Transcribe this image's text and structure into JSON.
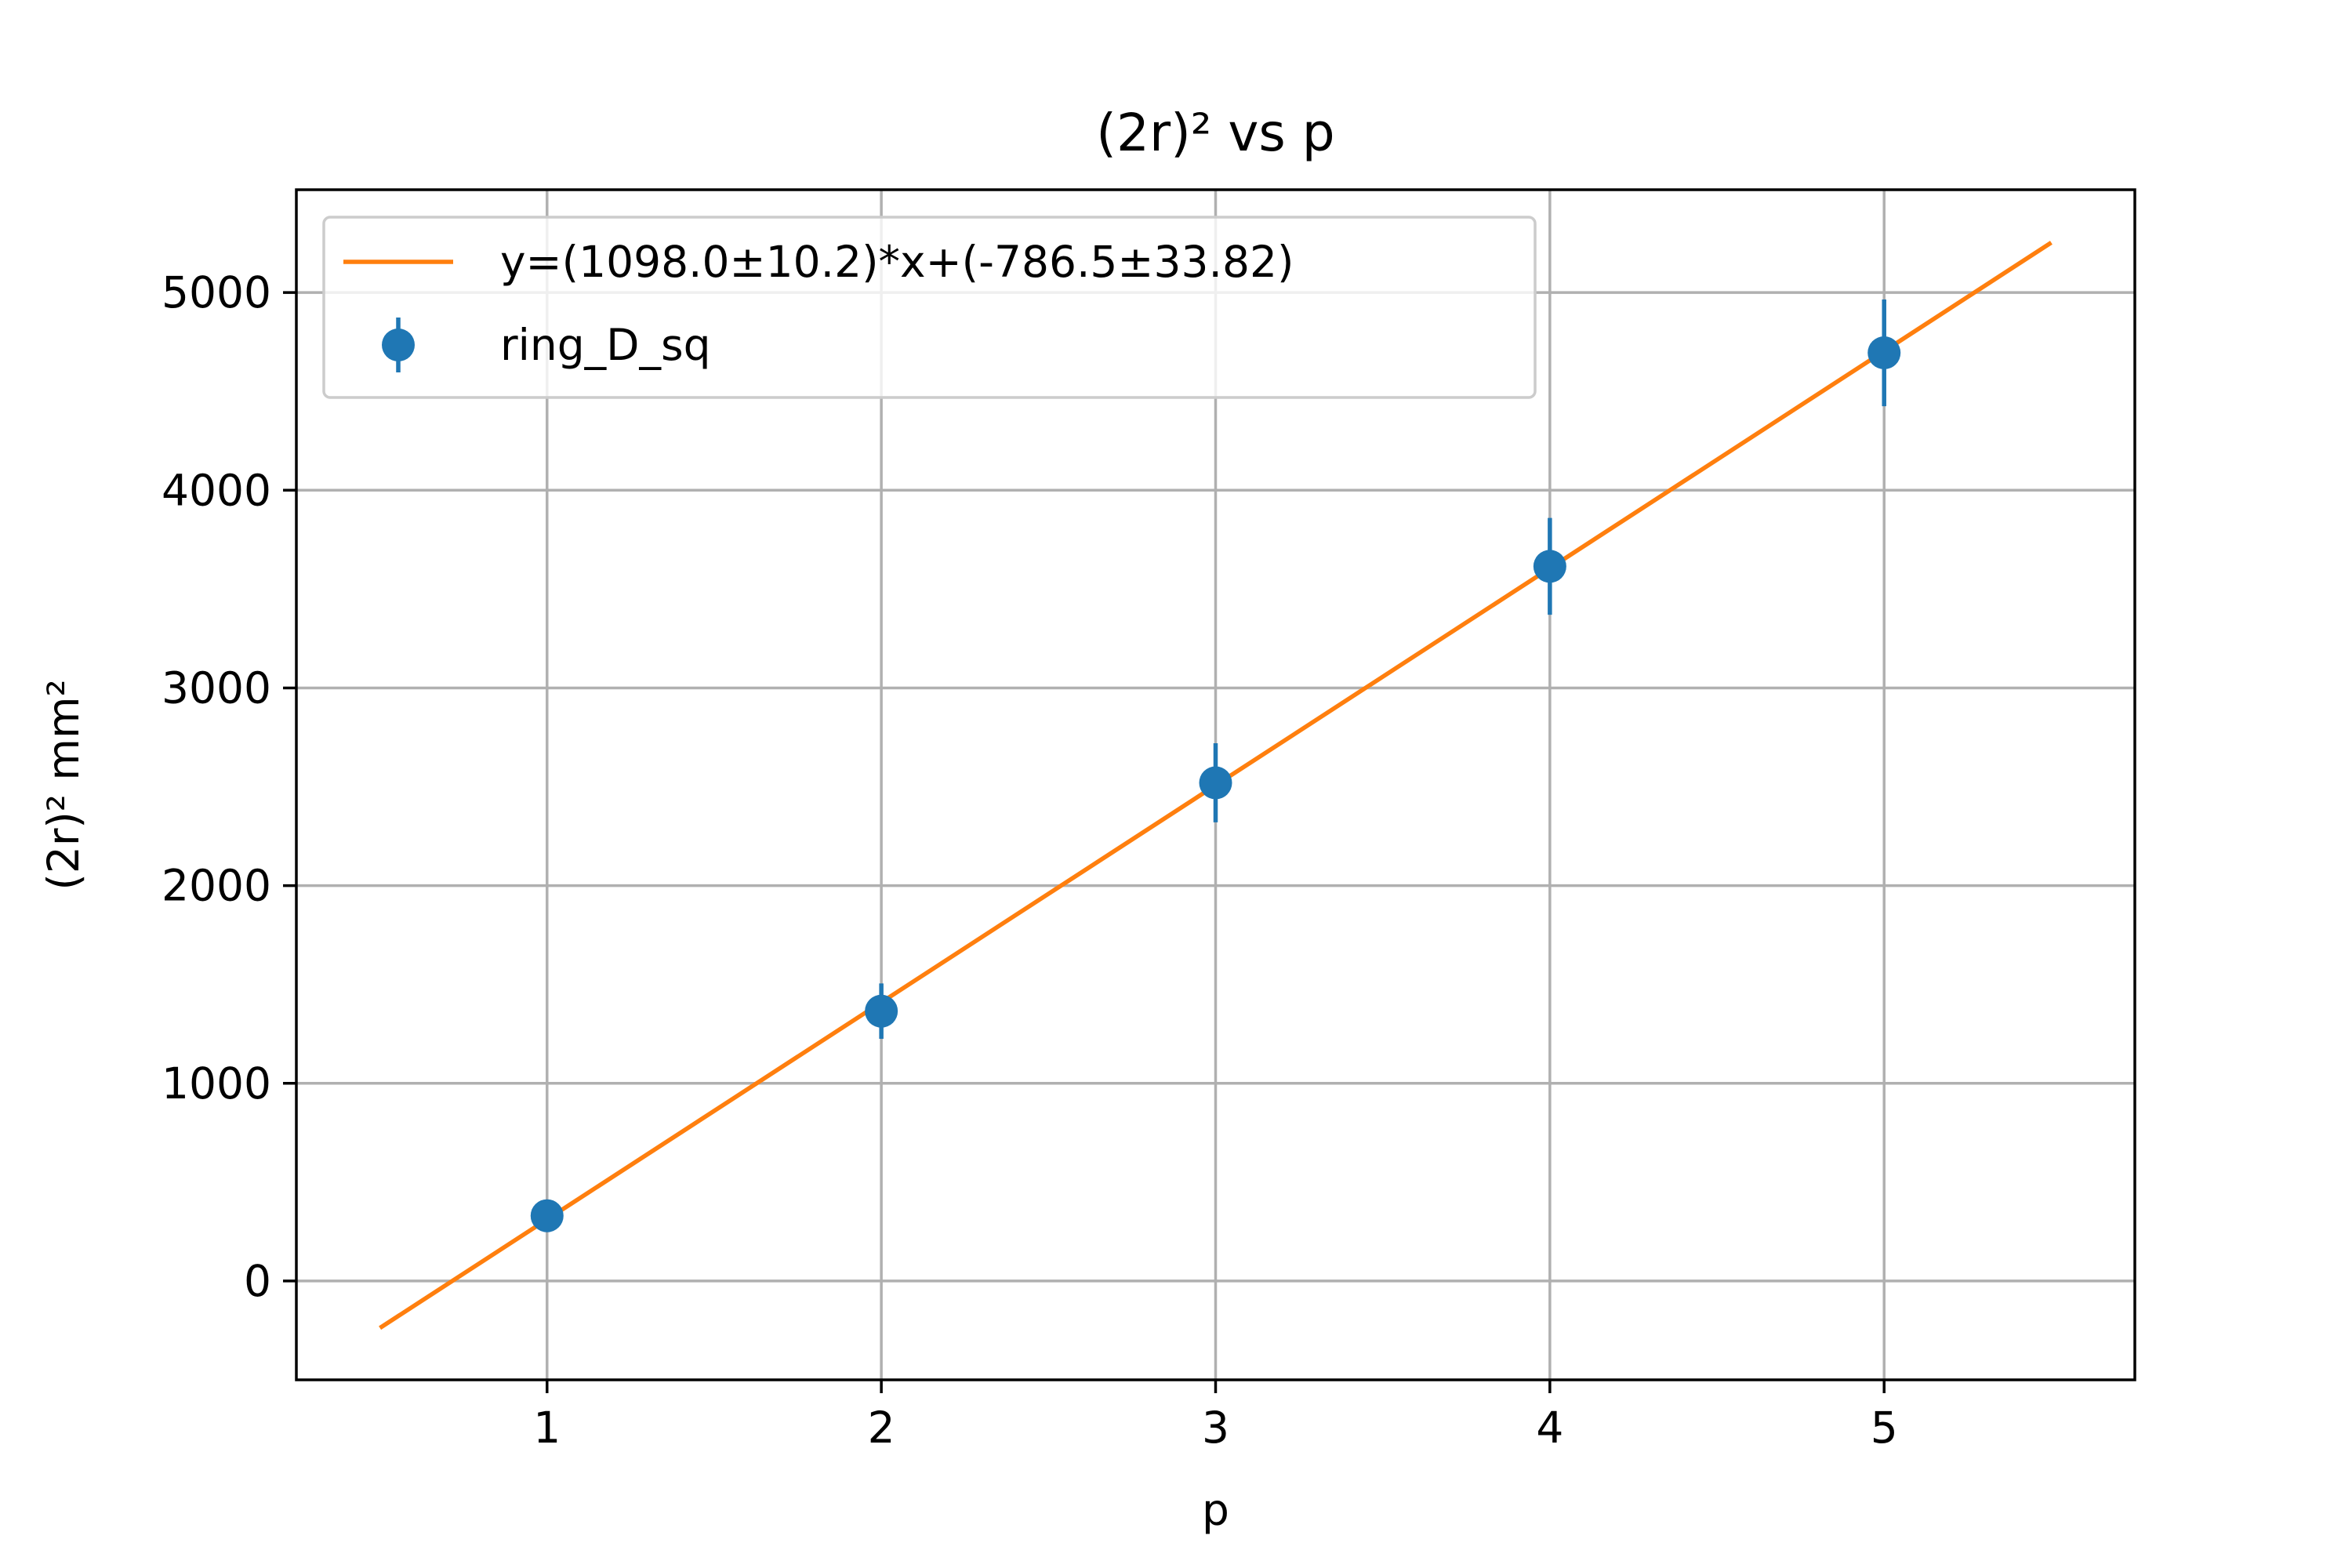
{
  "chart_data": {
    "type": "scatter",
    "title": "(2r)² vs p",
    "xlabel": "p",
    "ylabel": "(2r)² mm²",
    "xlim": [
      0.25,
      5.75
    ],
    "ylim": [
      -500,
      5520
    ],
    "xticks": [
      1,
      2,
      3,
      4,
      5
    ],
    "yticks": [
      0,
      1000,
      2000,
      3000,
      4000,
      5000
    ],
    "grid": true,
    "legend_position": "upper-left",
    "series": [
      {
        "name": "y=(1098.0±10.2)*x+(-786.5±33.82)",
        "kind": "line",
        "color": "#ff7f0e",
        "x": [
          0.5,
          5.5
        ],
        "y": [
          -237.5,
          5252.5
        ]
      },
      {
        "name": "ring_D_sq",
        "kind": "errorbar",
        "color": "#1f77b4",
        "x": [
          1,
          2,
          3,
          4,
          5
        ],
        "y": [
          330,
          1365,
          2520,
          3615,
          4695
        ],
        "yerr": [
          60,
          140,
          200,
          245,
          270
        ]
      }
    ]
  }
}
